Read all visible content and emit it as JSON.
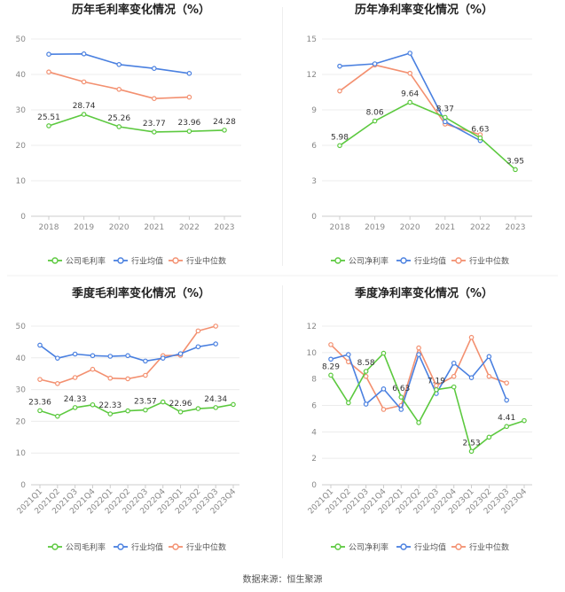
{
  "colors": {
    "company": "#5cc93f",
    "industry_avg": "#4a80e0",
    "industry_median": "#f39070"
  },
  "source_text": "数据来源：恒生聚源",
  "chart_data": [
    {
      "type": "line",
      "title": "历年毛利率变化情况（%）",
      "categories": [
        "2018",
        "2019",
        "2020",
        "2021",
        "2022",
        "2023"
      ],
      "ylim": [
        0,
        50
      ],
      "yticks": [
        0,
        10,
        20,
        30,
        40,
        50
      ],
      "grid": true,
      "legend": "bottom",
      "series": [
        {
          "name": "公司毛利率",
          "color": "#5cc93f",
          "values": [
            25.51,
            28.74,
            25.26,
            23.77,
            23.96,
            24.28
          ],
          "labels": [
            "25.51",
            "28.74",
            "25.26",
            "23.77",
            "23.96",
            "24.28"
          ]
        },
        {
          "name": "行业均值",
          "color": "#4a80e0",
          "values": [
            45.7,
            45.8,
            42.8,
            41.7,
            40.3,
            null
          ]
        },
        {
          "name": "行业中位数",
          "color": "#f39070",
          "values": [
            40.7,
            37.9,
            35.8,
            33.2,
            33.6,
            null
          ]
        }
      ]
    },
    {
      "type": "line",
      "title": "历年净利率变化情况（%）",
      "categories": [
        "2018",
        "2019",
        "2020",
        "2021",
        "2022",
        "2023"
      ],
      "ylim": [
        0,
        15
      ],
      "yticks": [
        0,
        3,
        6,
        9,
        12,
        15
      ],
      "grid": true,
      "legend": "bottom",
      "series": [
        {
          "name": "公司净利率",
          "color": "#5cc93f",
          "values": [
            5.98,
            8.06,
            9.64,
            8.37,
            6.63,
            3.95
          ],
          "labels": [
            "5.98",
            "8.06",
            "9.64",
            "8.37",
            "6.63",
            "3.95"
          ]
        },
        {
          "name": "行业均值",
          "color": "#4a80e0",
          "values": [
            12.7,
            12.9,
            13.8,
            8.0,
            6.4,
            null
          ]
        },
        {
          "name": "行业中位数",
          "color": "#f39070",
          "values": [
            10.6,
            12.8,
            12.1,
            7.8,
            6.9,
            null
          ]
        }
      ]
    },
    {
      "type": "line",
      "title": "季度毛利率变化情况（%）",
      "categories": [
        "2021Q1",
        "2021Q2",
        "2021Q3",
        "2021Q4",
        "2022Q1",
        "2022Q2",
        "2022Q3",
        "2022Q4",
        "2023Q1",
        "2023Q2",
        "2023Q3",
        "2023Q4"
      ],
      "ylim": [
        0,
        50
      ],
      "yticks": [
        0,
        10,
        20,
        30,
        40,
        50
      ],
      "grid": true,
      "legend": "bottom",
      "series": [
        {
          "name": "公司毛利率",
          "color": "#5cc93f",
          "values": [
            23.36,
            21.6,
            24.33,
            25.2,
            22.33,
            23.3,
            23.57,
            26.1,
            22.96,
            24.0,
            24.34,
            25.3
          ],
          "labels": [
            "23.36",
            "",
            "24.33",
            "",
            "22.33",
            "",
            "23.57",
            "",
            "22.96",
            "",
            "24.34",
            ""
          ]
        },
        {
          "name": "行业均值",
          "color": "#4a80e0",
          "values": [
            44.0,
            39.9,
            41.2,
            40.7,
            40.5,
            40.7,
            39.0,
            39.9,
            41.3,
            43.5,
            44.4,
            null
          ]
        },
        {
          "name": "行业中位数",
          "color": "#f39070",
          "values": [
            33.2,
            31.9,
            33.8,
            36.4,
            33.6,
            33.4,
            34.5,
            40.7,
            40.8,
            48.5,
            50.0,
            null
          ]
        }
      ]
    },
    {
      "type": "line",
      "title": "季度净利率变化情况（%）",
      "categories": [
        "2021Q1",
        "2021Q2",
        "2021Q3",
        "2021Q4",
        "2022Q1",
        "2022Q2",
        "2022Q3",
        "2022Q4",
        "2023Q1",
        "2023Q2",
        "2023Q3",
        "2023Q4"
      ],
      "ylim": [
        0,
        12
      ],
      "yticks": [
        0,
        2,
        4,
        6,
        8,
        10,
        12
      ],
      "grid": true,
      "legend": "bottom",
      "series": [
        {
          "name": "公司净利率",
          "color": "#5cc93f",
          "values": [
            8.29,
            6.2,
            8.58,
            9.95,
            6.63,
            4.7,
            7.19,
            7.4,
            2.53,
            3.6,
            4.41,
            4.85
          ],
          "labels": [
            "8.29",
            "",
            "8.58",
            "",
            "6.63",
            "",
            "7.19",
            "",
            "2.53",
            "",
            "4.41",
            ""
          ]
        },
        {
          "name": "行业均值",
          "color": "#4a80e0",
          "values": [
            9.5,
            9.85,
            6.1,
            7.25,
            5.7,
            9.85,
            6.9,
            9.2,
            8.1,
            9.7,
            6.4,
            null
          ]
        },
        {
          "name": "行业中位数",
          "color": "#f39070",
          "values": [
            10.6,
            9.3,
            8.2,
            5.7,
            6.0,
            10.35,
            7.5,
            8.2,
            11.15,
            8.2,
            7.7,
            null
          ]
        }
      ]
    }
  ]
}
